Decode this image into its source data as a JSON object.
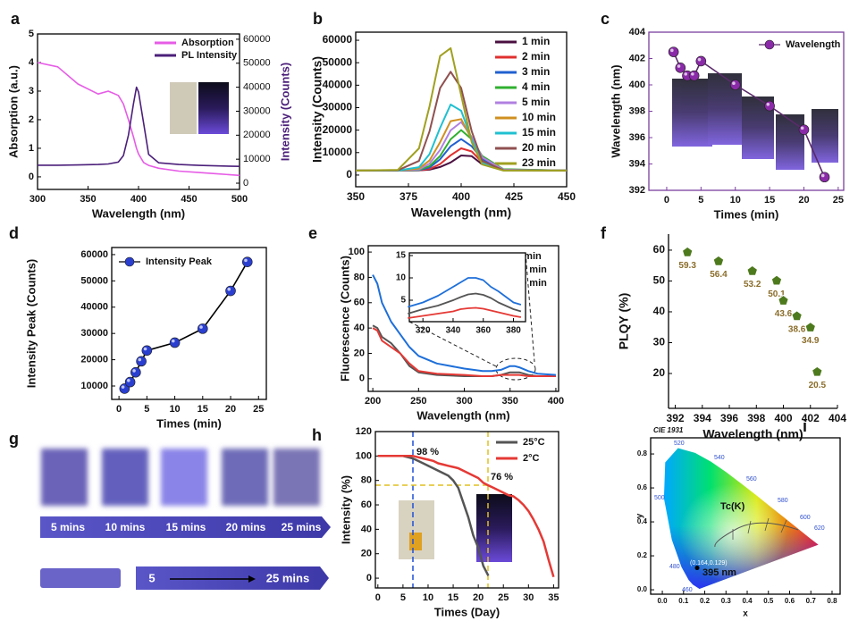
{
  "chart_data": [
    {
      "label": "a",
      "type": "line",
      "xlabel": "Wavelength (nm)",
      "ylabel": "Absorption (a.u.)",
      "y2label": "Intensity (Counts)",
      "x": [
        300,
        320,
        340,
        360,
        370,
        380,
        385,
        390,
        395,
        398,
        400,
        405,
        410,
        420,
        440,
        460,
        480,
        500
      ],
      "series": [
        {
          "name": "Absorption",
          "color": "#e65ce6",
          "values": [
            4.0,
            3.85,
            3.25,
            2.9,
            3.0,
            2.85,
            2.55,
            2.0,
            1.4,
            1.0,
            0.8,
            0.5,
            0.4,
            0.3,
            0.2,
            0.15,
            0.1,
            0.05
          ]
        },
        {
          "name": "PL Intensity",
          "color": "#4b1f7a",
          "axis": "y2",
          "values": [
            7500,
            7500,
            7600,
            7800,
            8000,
            8800,
            11500,
            20000,
            33000,
            40000,
            38000,
            25000,
            12000,
            8500,
            7800,
            7400,
            7200,
            7000
          ]
        }
      ],
      "xlim": [
        300,
        500
      ],
      "xticks": [
        300,
        350,
        400,
        450,
        500
      ],
      "ylim": [
        -0.44,
        5
      ],
      "yticks": [
        0,
        1,
        2,
        3,
        4,
        5
      ],
      "y2lim": [
        -2600,
        62200
      ],
      "y2ticks": [
        0,
        10000,
        20000,
        30000,
        40000,
        50000,
        60000
      ],
      "legend": "upper right"
    },
    {
      "label": "b",
      "type": "line",
      "xlabel": "Wavelength (nm)",
      "ylabel": "Intensity (Counts)",
      "x": [
        350,
        370,
        380,
        385,
        390,
        395,
        400,
        405,
        410,
        420,
        450
      ],
      "series": [
        {
          "name": "1 min",
          "color": "#4a1040",
          "values": [
            2000,
            2000,
            2100,
            2400,
            3600,
            5600,
            8700,
            8400,
            4800,
            2200,
            2000
          ]
        },
        {
          "name": "2 min",
          "color": "#e03030",
          "values": [
            2000,
            2000,
            2100,
            2700,
            4900,
            8800,
            11900,
            10500,
            5600,
            2300,
            2000
          ]
        },
        {
          "name": "3 min",
          "color": "#2060d0",
          "values": [
            2000,
            2000,
            2200,
            3400,
            7000,
            12800,
            16000,
            12800,
            7000,
            2500,
            2000
          ]
        },
        {
          "name": "4 min",
          "color": "#30b030",
          "values": [
            2000,
            2000,
            2300,
            4000,
            8500,
            15900,
            20000,
            15900,
            8500,
            2600,
            2000
          ]
        },
        {
          "name": "5 min",
          "color": "#b080e0",
          "values": [
            2000,
            2000,
            2500,
            5100,
            11200,
            19900,
            23600,
            17000,
            7900,
            2400,
            2000
          ]
        },
        {
          "name": "10 min",
          "color": "#d09020",
          "values": [
            2000,
            2000,
            2900,
            6500,
            14600,
            24000,
            24900,
            15800,
            6100,
            2200,
            2000
          ]
        },
        {
          "name": "15 min",
          "color": "#20c0d0",
          "values": [
            2000,
            2000,
            3500,
            9300,
            21000,
            31400,
            28600,
            15900,
            5300,
            2100,
            2000
          ]
        },
        {
          "name": "20 min",
          "color": "#905050",
          "values": [
            2000,
            2100,
            6300,
            19500,
            38700,
            46000,
            38700,
            19500,
            6300,
            2100,
            2000
          ]
        },
        {
          "name": "23 min",
          "color": "#a0a020",
          "values": [
            2000,
            2300,
            11900,
            30600,
            53000,
            56500,
            35500,
            14600,
            4700,
            2000,
            2000
          ]
        }
      ],
      "xlim": [
        350,
        450
      ],
      "xticks": [
        350,
        375,
        400,
        425,
        450
      ],
      "ylim": [
        -5200,
        63600
      ],
      "yticks": [
        0,
        10000,
        20000,
        30000,
        40000,
        50000,
        60000
      ],
      "legend": "upper right"
    },
    {
      "label": "c",
      "type": "line",
      "xlabel": "Times (min)",
      "ylabel": "Wavelength (nm)",
      "markers": true,
      "frame_color": "#7b3f9e",
      "x": [
        1,
        2,
        3,
        4,
        5,
        10,
        15,
        20,
        23
      ],
      "series": [
        {
          "name": "Wavelength",
          "color": "#8a2aa8",
          "line_color": "#5a2a6a",
          "values": [
            402.5,
            401.3,
            400.7,
            400.7,
            401.8,
            400.0,
            398.4,
            396.6,
            393.0
          ]
        }
      ],
      "xlim": [
        -2.6,
        25.8
      ],
      "xticks": [
        0,
        5,
        10,
        15,
        20,
        25
      ],
      "ylim": [
        392,
        404
      ],
      "yticks": [
        392,
        394,
        396,
        398,
        400,
        402,
        404
      ],
      "legend": "upper right"
    },
    {
      "label": "d",
      "type": "line",
      "xlabel": "Times (min)",
      "ylabel": "Intensity Peak (Counts)",
      "markers": true,
      "x": [
        1,
        2,
        3,
        4,
        5,
        10,
        15,
        20,
        23
      ],
      "series": [
        {
          "name": "Intensity Peak",
          "color": "#2a3fd0",
          "line_color": "#000000",
          "values": [
            9000,
            11500,
            15200,
            19400,
            23500,
            26500,
            31800,
            46200,
            57200
          ]
        }
      ],
      "xlim": [
        -1.3,
        26.4
      ],
      "xticks": [
        0,
        5,
        10,
        15,
        20,
        25
      ],
      "ylim": [
        4900,
        62700
      ],
      "yticks": [
        10000,
        20000,
        30000,
        40000,
        50000,
        60000
      ],
      "legend": "upper left"
    },
    {
      "label": "e",
      "type": "line",
      "xlabel": "Wavelength (nm)",
      "ylabel": "Fluorescence (Counts)",
      "x": [
        200,
        205,
        210,
        220,
        230,
        240,
        250,
        270,
        300,
        320,
        330,
        340,
        350,
        355,
        360,
        370,
        380,
        400
      ],
      "series": [
        {
          "name": "1 min",
          "color": "#555555",
          "values": [
            42,
            40,
            33,
            28,
            20,
            10,
            5,
            3,
            2,
            2,
            2,
            3,
            5,
            5,
            5,
            3,
            2,
            2
          ]
        },
        {
          "name": "10 min",
          "color": "#e53935",
          "values": [
            40,
            38,
            30,
            25,
            20,
            12,
            6,
            4,
            3,
            2,
            2,
            3,
            3,
            3,
            3,
            2,
            2,
            2
          ]
        },
        {
          "name": "20 min",
          "color": "#1e6fd9",
          "values": [
            82,
            75,
            60,
            45,
            35,
            25,
            18,
            12,
            8,
            6,
            6,
            7,
            10,
            10,
            9,
            6,
            4,
            3
          ]
        }
      ],
      "xlim": [
        195,
        403
      ],
      "xticks": [
        200,
        250,
        300,
        350,
        400
      ],
      "ylim": [
        -10,
        105
      ],
      "yticks": [
        0,
        20,
        40,
        60,
        80,
        100
      ],
      "legend": "upper right"
    },
    {
      "type": "line",
      "x": [
        310,
        320,
        330,
        340,
        345,
        350,
        355,
        360,
        365,
        370,
        380,
        385
      ],
      "series": [
        {
          "color": "#555555",
          "values": [
            2,
            3,
            3.8,
            5,
            5.7,
            6.3,
            6.5,
            6.2,
            5.5,
            4.5,
            3,
            2.5
          ]
        },
        {
          "color": "#e53935",
          "values": [
            1,
            1.5,
            2,
            2.5,
            3,
            3.2,
            3.3,
            3.1,
            2.7,
            2.3,
            1.5,
            1.2
          ]
        },
        {
          "color": "#1e6fd9",
          "values": [
            3.5,
            4.5,
            6,
            8,
            9,
            10,
            10,
            9.5,
            8,
            7,
            4.5,
            4
          ]
        }
      ],
      "xlim": [
        311,
        388
      ],
      "xticks": [
        320,
        340,
        360,
        380
      ],
      "ylim": [
        0.2,
        15.6
      ],
      "yticks": [
        5,
        10,
        15
      ]
    },
    {
      "label": "f",
      "type": "scatter",
      "xlabel": "Wavelength (nm)",
      "ylabel": "PLQY (%)",
      "frame": false,
      "color": "#4e7a1e",
      "label_color": "#8a6d2a",
      "x": [
        392.9,
        395.2,
        397.7,
        399.5,
        400.0,
        401.0,
        402.0,
        402.5
      ],
      "values": [
        59.3,
        56.4,
        53.2,
        50.1,
        43.6,
        38.6,
        34.9,
        20.5
      ],
      "xlim": [
        391.5,
        404
      ],
      "xticks": [
        392,
        394,
        396,
        398,
        400,
        402,
        404
      ],
      "ylim": [
        8.7,
        65.2
      ],
      "yticks": [
        20,
        30,
        40,
        50,
        60
      ]
    },
    {
      "label": "g",
      "type": "photo",
      "captions": [
        "5 mins",
        "10 mins",
        "15 mins",
        "20 mins",
        "25 mins"
      ],
      "arrow_labels": [
        "5",
        "25 mins"
      ]
    },
    {
      "label": "h",
      "type": "line",
      "xlabel": "Times (Day)",
      "ylabel": "Intensity (%)",
      "annotations": [
        "98 %",
        "76 %"
      ],
      "x": [
        0,
        1,
        2,
        3,
        4,
        5,
        6,
        7,
        8,
        9,
        10,
        11,
        12,
        13,
        14,
        15,
        16,
        17,
        18,
        19,
        20,
        21,
        22,
        23,
        24,
        25,
        26,
        27,
        28,
        29,
        30,
        31,
        32,
        33,
        34,
        35
      ],
      "series": [
        {
          "name": "25°C",
          "color": "#555555",
          "values": [
            100,
            100,
            100,
            100,
            100,
            100,
            99,
            98,
            96,
            94,
            92,
            90,
            88,
            86,
            84,
            80,
            74,
            62,
            50,
            35,
            25,
            10,
            2,
            null,
            null,
            null,
            null,
            null,
            null,
            null,
            null,
            null,
            null,
            null,
            null,
            null
          ]
        },
        {
          "name": "2°C",
          "color": "#e53935",
          "values": [
            100,
            100,
            100,
            100,
            100,
            100,
            100,
            100,
            99,
            98,
            97,
            96,
            94,
            93,
            92,
            91,
            90,
            88,
            86,
            84,
            82,
            78,
            76,
            74,
            72,
            70,
            68,
            67,
            64,
            60,
            55,
            48,
            40,
            30,
            15,
            1
          ]
        }
      ],
      "xlim": [
        -0.5,
        36
      ],
      "xticks": [
        0,
        5,
        10,
        15,
        20,
        25,
        30,
        35
      ],
      "ylim": [
        -8,
        120
      ],
      "yticks": [
        0,
        20,
        40,
        60,
        80,
        100,
        120
      ],
      "legend": "upper right"
    },
    {
      "label": "i",
      "type": "cie",
      "title": "CIE 1931",
      "xlabel": "x",
      "ylabel": "y",
      "point": {
        "x": 0.164,
        "y": 0.129
      },
      "point_label": "(0.164,0.129)",
      "annotations": [
        "Tc(K)",
        "395 nm"
      ],
      "wavelength_labels": [
        460,
        480,
        500,
        520,
        540,
        560,
        580,
        600,
        620
      ],
      "xlim": [
        -0.055,
        0.838
      ],
      "xticks": [
        {
          "value": 0,
          "label": "0.0"
        },
        0.1,
        0.2,
        0.3,
        0.4,
        0.5,
        0.6,
        0.7,
        0.8
      ],
      "ylim": [
        -0.026,
        0.895
      ],
      "yticks": [
        {
          "value": 0,
          "label": "0.0"
        },
        0.2,
        0.4,
        0.6,
        0.8
      ]
    }
  ]
}
